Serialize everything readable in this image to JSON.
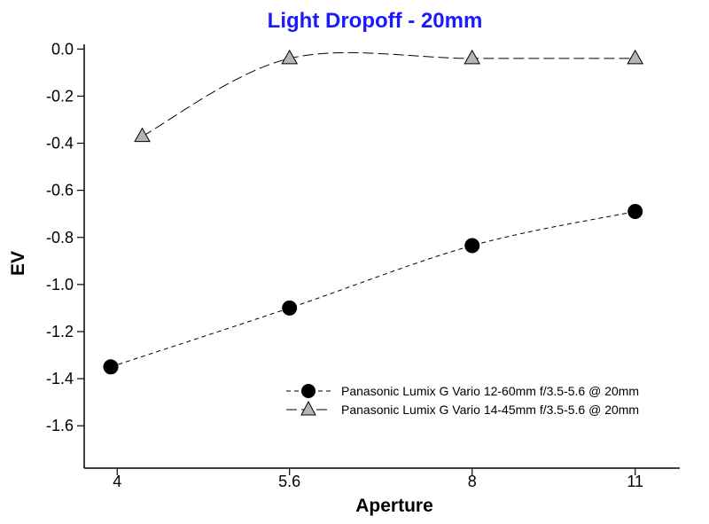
{
  "chart_data": {
    "type": "line",
    "title": "Light Dropoff - 20mm",
    "title_color": "#1a1aff",
    "xlabel": "Aperture",
    "ylabel": "EV",
    "x_scale": "log",
    "xlim": [
      3.75,
      12.0
    ],
    "ylim": [
      -1.78,
      0.02
    ],
    "x_ticks": [
      {
        "value": 4,
        "label": "4"
      },
      {
        "value": 5.6,
        "label": "5.6"
      },
      {
        "value": 8,
        "label": "8"
      },
      {
        "value": 11,
        "label": "11"
      }
    ],
    "y_ticks": [
      {
        "value": 0.0,
        "label": "0.0"
      },
      {
        "value": -0.2,
        "label": "-0.2"
      },
      {
        "value": -0.4,
        "label": "-0.4"
      },
      {
        "value": -0.6,
        "label": "-0.6"
      },
      {
        "value": -0.8,
        "label": "-0.8"
      },
      {
        "value": -1.0,
        "label": "-1.0"
      },
      {
        "value": -1.2,
        "label": "-1.2"
      },
      {
        "value": -1.4,
        "label": "-1.4"
      },
      {
        "value": -1.6,
        "label": "-1.6"
      }
    ],
    "grid": false,
    "legend_position": "bottom-right",
    "series": [
      {
        "name": "Panasonic Lumix G Vario 12-60mm f/3.5-5.6 @ 20mm",
        "marker": "circle",
        "marker_fill": "#000000",
        "line_style": "dashed",
        "x": [
          3.95,
          5.6,
          8.0,
          11.0
        ],
        "y": [
          -1.35,
          -1.1,
          -0.835,
          -0.69
        ]
      },
      {
        "name": "Panasonic Lumix G Vario 14-45mm f/3.5-5.6 @ 20mm",
        "marker": "triangle",
        "marker_fill": "#b4b4b4",
        "line_style": "long-dashed",
        "x": [
          4.2,
          5.6,
          8.0,
          11.0
        ],
        "y": [
          -0.37,
          -0.04,
          -0.04,
          -0.04
        ]
      }
    ]
  }
}
